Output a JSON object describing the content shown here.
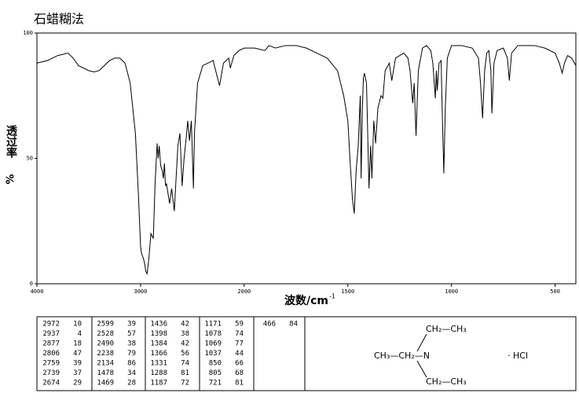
{
  "chart_data": {
    "type": "line",
    "title": "石蜡糊法",
    "y_label": "透过率",
    "y_unit": "%",
    "x_label": "波数/cm",
    "x_label_sup": "-1",
    "x": [
      4000,
      3900,
      3800,
      3700,
      3650,
      3600,
      3500,
      3450,
      3400,
      3350,
      3300,
      3250,
      3200,
      3150,
      3100,
      3050,
      3020,
      3000,
      2990,
      2972,
      2960,
      2950,
      2937,
      2920,
      2900,
      2877,
      2860,
      2840,
      2830,
      2820,
      2806,
      2790,
      2780,
      2770,
      2759,
      2750,
      2739,
      2720,
      2700,
      2674,
      2660,
      2640,
      2620,
      2599,
      2580,
      2560,
      2545,
      2528,
      2510,
      2490,
      2480,
      2450,
      2400,
      2350,
      2300,
      2238,
      2200,
      2150,
      2134,
      2100,
      2050,
      2000,
      1950,
      1900,
      1880,
      1850,
      1800,
      1750,
      1700,
      1650,
      1600,
      1550,
      1520,
      1500,
      1490,
      1478,
      1469,
      1460,
      1450,
      1440,
      1436,
      1430,
      1425,
      1420,
      1410,
      1398,
      1390,
      1384,
      1375,
      1366,
      1355,
      1340,
      1331,
      1320,
      1300,
      1288,
      1270,
      1250,
      1230,
      1210,
      1200,
      1187,
      1180,
      1171,
      1160,
      1140,
      1120,
      1100,
      1090,
      1078,
      1073,
      1069,
      1060,
      1050,
      1045,
      1037,
      1030,
      1020,
      1000,
      950,
      900,
      870,
      860,
      850,
      840,
      830,
      820,
      810,
      805,
      795,
      780,
      750,
      730,
      721,
      710,
      680,
      600,
      550,
      500,
      480,
      466,
      455,
      440,
      420,
      400
    ],
    "values": [
      88,
      89,
      91,
      92,
      90,
      87,
      85,
      84.5,
      85,
      87,
      89,
      90,
      90,
      88,
      80,
      60,
      35,
      15,
      12,
      10,
      8,
      5,
      4,
      10,
      20,
      18,
      40,
      56,
      50,
      55,
      47,
      45,
      42,
      48,
      39,
      40,
      37,
      32,
      38,
      29,
      40,
      55,
      60,
      39,
      50,
      58,
      65,
      57,
      65,
      38,
      60,
      80,
      87,
      88,
      89,
      79,
      88,
      90,
      86,
      91,
      93,
      94,
      94,
      93,
      95,
      94,
      95,
      95,
      94,
      92,
      90,
      85,
      75,
      65,
      50,
      34,
      28,
      45,
      55,
      75,
      42,
      70,
      82,
      84,
      80,
      38,
      55,
      42,
      65,
      56,
      70,
      75,
      74,
      85,
      88,
      81,
      90,
      91,
      92,
      90,
      85,
      72,
      80,
      59,
      85,
      94,
      95,
      93,
      88,
      74,
      85,
      77,
      88,
      89,
      70,
      44,
      70,
      90,
      95,
      95,
      94,
      90,
      80,
      66,
      85,
      92,
      93,
      85,
      68,
      88,
      93,
      94,
      90,
      81,
      92,
      95,
      95,
      94,
      92,
      88,
      84,
      88,
      91,
      90,
      87
    ],
    "color": "#000000",
    "xlim": [
      4000,
      400
    ],
    "x_scale_change": 2000,
    "xticks": [
      4000,
      3000,
      2000,
      1500,
      1000,
      500
    ],
    "ylim": [
      0,
      100
    ],
    "yticks": [
      0,
      50,
      100
    ]
  },
  "peak_table": {
    "columns": [
      [
        [
          2972,
          10
        ],
        [
          2937,
          4
        ],
        [
          2877,
          18
        ],
        [
          2806,
          47
        ],
        [
          2759,
          39
        ],
        [
          2739,
          37
        ],
        [
          2674,
          29
        ]
      ],
      [
        [
          2599,
          39
        ],
        [
          2528,
          57
        ],
        [
          2490,
          38
        ],
        [
          2238,
          79
        ],
        [
          2134,
          86
        ],
        [
          1478,
          34
        ],
        [
          1469,
          28
        ]
      ],
      [
        [
          1436,
          42
        ],
        [
          1398,
          38
        ],
        [
          1384,
          42
        ],
        [
          1366,
          56
        ],
        [
          1331,
          74
        ],
        [
          1288,
          81
        ],
        [
          1187,
          72
        ]
      ],
      [
        [
          1171,
          59
        ],
        [
          1078,
          74
        ],
        [
          1069,
          77
        ],
        [
          1037,
          44
        ],
        [
          850,
          66
        ],
        [
          805,
          68
        ],
        [
          721,
          81
        ]
      ],
      [
        [
          466,
          84
        ]
      ]
    ]
  },
  "structure": {
    "top": "CH₂—CH₃",
    "left": "CH₃—CH₂—N",
    "bottom": "CH₂—CH₃",
    "salt": "· HCl"
  }
}
